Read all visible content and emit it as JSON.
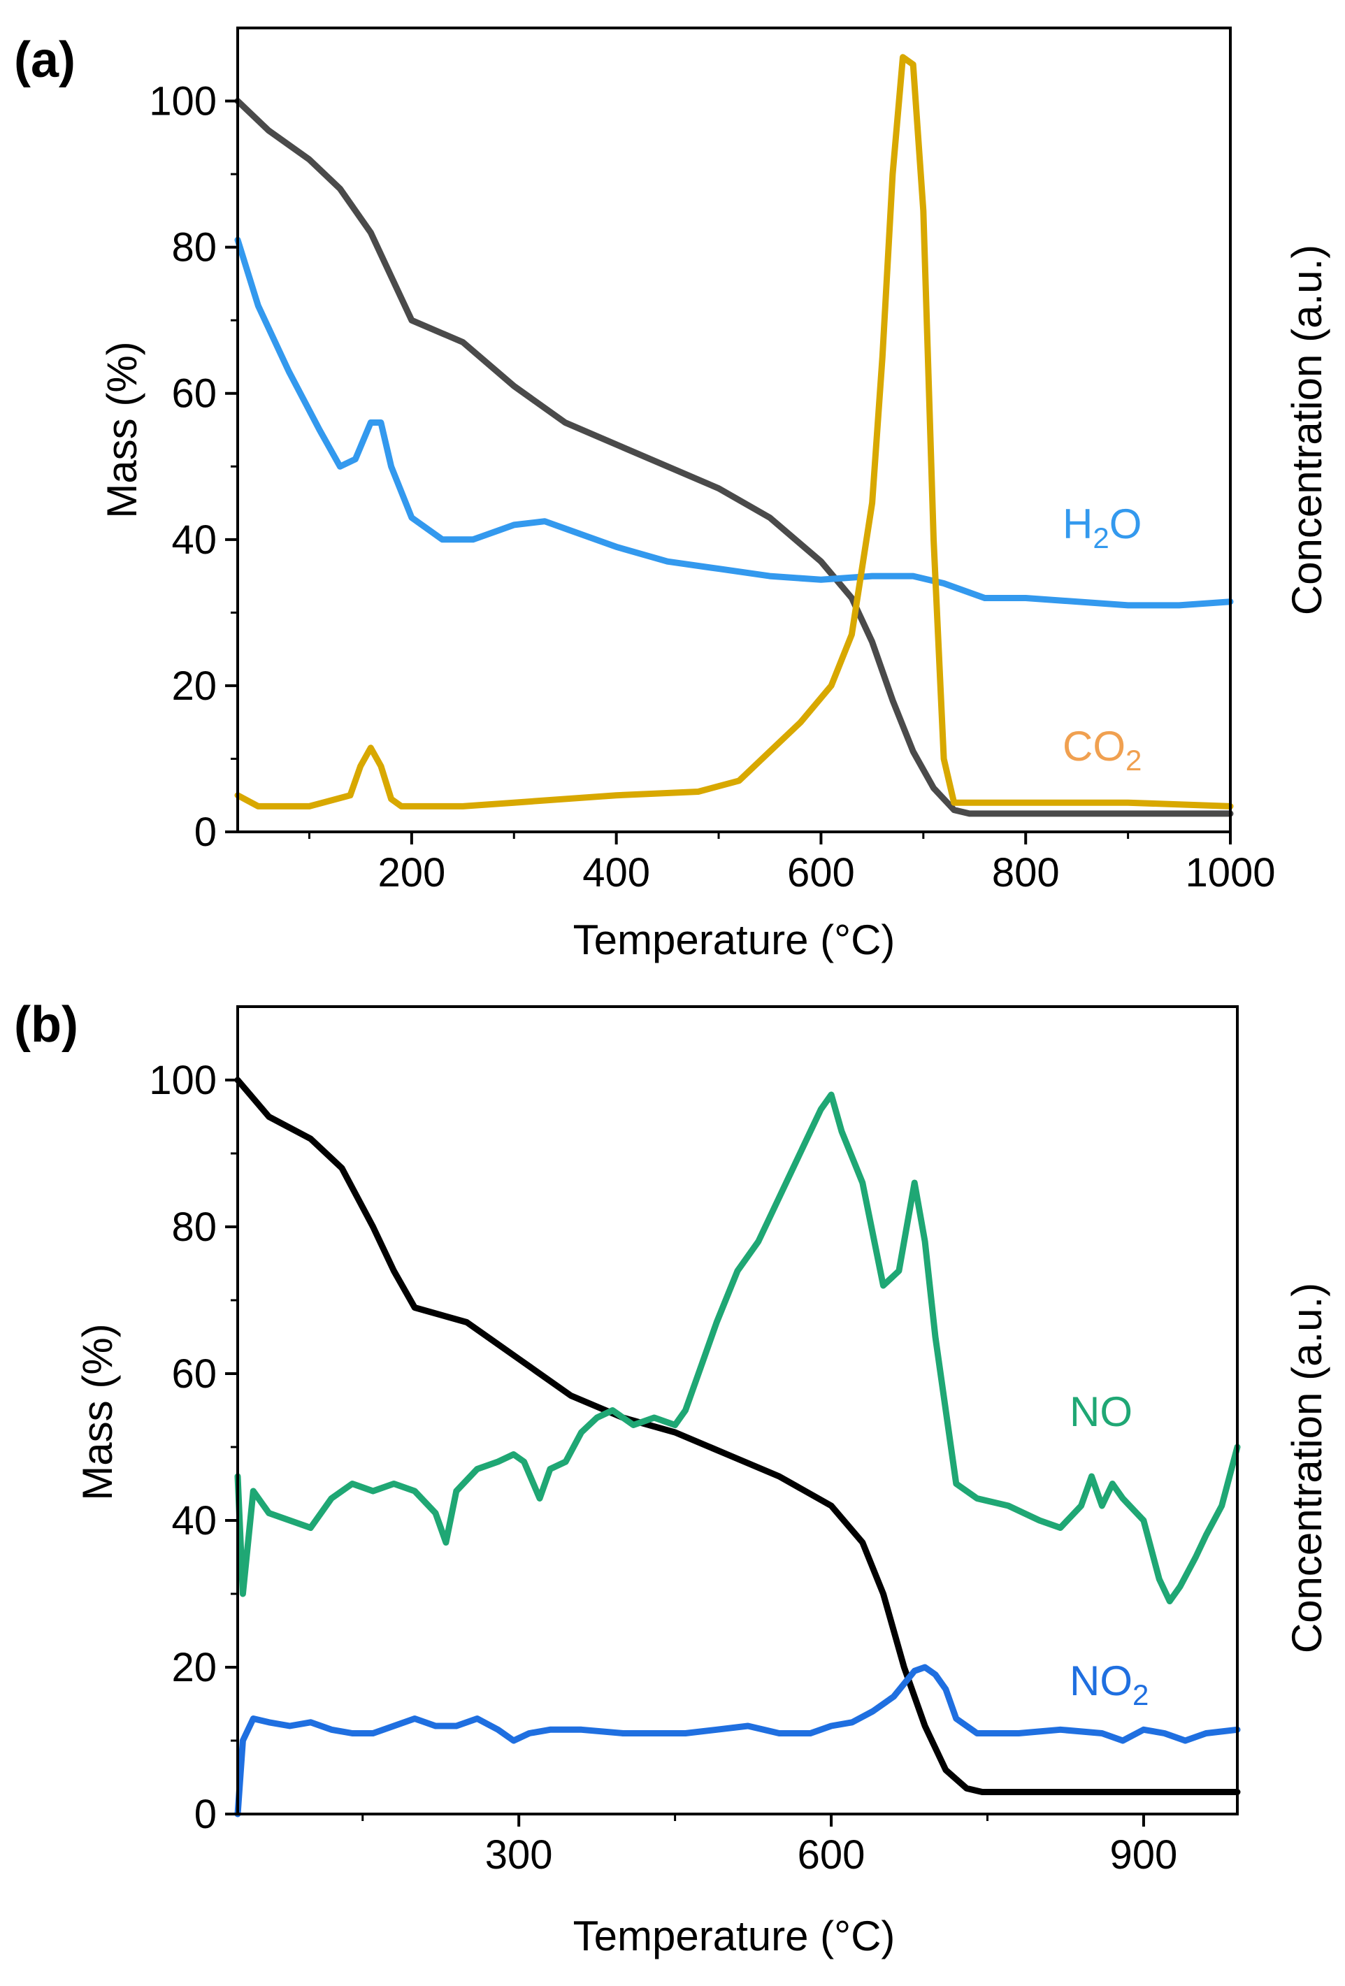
{
  "chart_data": [
    {
      "type": "line",
      "panel_label": "(a)",
      "xlabel": "Temperature (°C)",
      "ylabel": "Mass (%)",
      "y2label": "Concentration (a.u.)",
      "xlim": [
        30,
        1000
      ],
      "ylim": [
        0,
        110
      ],
      "xticks": [
        200,
        400,
        600,
        800,
        1000
      ],
      "yticks": [
        0,
        20,
        40,
        60,
        80,
        100
      ],
      "grid": false,
      "series": [
        {
          "key": "mass",
          "name": "",
          "axis": "left",
          "color": "#4a4a4a",
          "x": [
            30,
            60,
            100,
            130,
            160,
            180,
            200,
            250,
            300,
            350,
            400,
            450,
            500,
            550,
            600,
            630,
            650,
            670,
            690,
            710,
            730,
            745,
            760,
            800,
            900,
            1000
          ],
          "y": [
            100,
            96,
            92,
            88,
            82,
            76,
            70,
            67,
            61,
            56,
            53,
            50,
            47,
            43,
            37,
            32,
            26,
            18,
            11,
            6,
            3,
            2.5,
            2.5,
            2.5,
            2.5,
            2.5
          ]
        },
        {
          "key": "h2o",
          "name": "H2O",
          "axis": "right",
          "color": "#3399ee",
          "x": [
            30,
            50,
            80,
            110,
            130,
            145,
            160,
            170,
            180,
            200,
            230,
            260,
            300,
            330,
            360,
            400,
            450,
            500,
            550,
            600,
            650,
            690,
            720,
            760,
            800,
            900,
            950,
            1000
          ],
          "y": [
            81,
            72,
            63,
            55,
            50,
            51,
            56,
            56,
            50,
            43,
            40,
            40,
            42,
            42.5,
            41,
            39,
            37,
            36,
            35,
            34.5,
            35,
            35,
            34,
            32,
            32,
            31,
            31,
            31.5
          ]
        },
        {
          "key": "co2",
          "name": "CO2",
          "axis": "right",
          "color": "#d8a800",
          "x": [
            30,
            50,
            100,
            140,
            150,
            160,
            170,
            180,
            190,
            250,
            300,
            400,
            480,
            520,
            550,
            580,
            610,
            630,
            650,
            660,
            670,
            680,
            690,
            700,
            710,
            720,
            730,
            760,
            800,
            900,
            1000
          ],
          "y": [
            5,
            3.5,
            3.5,
            5,
            9,
            11.5,
            9,
            4.5,
            3.5,
            3.5,
            4,
            5,
            5.5,
            7,
            11,
            15,
            20,
            27,
            45,
            65,
            90,
            106,
            105,
            85,
            40,
            10,
            4,
            4,
            4,
            4,
            3.5
          ]
        }
      ],
      "series_labels": [
        {
          "text": "H2O",
          "base": "H",
          "sub": "2",
          "tail": "O",
          "color": "#3399ee"
        },
        {
          "text": "CO2",
          "base": "CO",
          "sub": "2",
          "tail": "",
          "color": "#f0a050"
        }
      ]
    },
    {
      "type": "line",
      "panel_label": "(b)",
      "xlabel": "Temperature (°C)",
      "ylabel": "Mass (%)",
      "y2label": "Concentration (a.u.)",
      "xlim": [
        30,
        990
      ],
      "ylim": [
        0,
        110
      ],
      "xticks": [
        300,
        600,
        900
      ],
      "yticks": [
        0,
        20,
        40,
        60,
        80,
        100
      ],
      "grid": false,
      "series": [
        {
          "key": "mass",
          "name": "",
          "axis": "left",
          "color": "#000000",
          "x": [
            30,
            60,
            100,
            130,
            160,
            180,
            200,
            250,
            300,
            350,
            400,
            450,
            500,
            550,
            600,
            630,
            650,
            670,
            690,
            710,
            730,
            745,
            760,
            800,
            900,
            990
          ],
          "y": [
            100,
            95,
            92,
            88,
            80,
            74,
            69,
            67,
            62,
            57,
            54,
            52,
            49,
            46,
            42,
            37,
            30,
            20,
            12,
            6,
            3.5,
            3,
            3,
            3,
            3,
            3
          ]
        },
        {
          "key": "no",
          "name": "NO",
          "axis": "right",
          "color": "#1fa774",
          "x": [
            30,
            35,
            45,
            60,
            80,
            100,
            120,
            140,
            160,
            180,
            200,
            220,
            230,
            240,
            260,
            280,
            295,
            305,
            320,
            330,
            345,
            360,
            375,
            390,
            410,
            430,
            450,
            460,
            475,
            490,
            510,
            530,
            550,
            570,
            590,
            600,
            610,
            630,
            650,
            665,
            680,
            690,
            700,
            710,
            720,
            740,
            770,
            800,
            820,
            840,
            850,
            860,
            870,
            880,
            900,
            915,
            925,
            935,
            950,
            960,
            975,
            990
          ],
          "y": [
            46,
            30,
            44,
            41,
            40,
            39,
            43,
            45,
            44,
            45,
            44,
            41,
            37,
            44,
            47,
            48,
            49,
            48,
            43,
            47,
            48,
            52,
            54,
            55,
            53,
            54,
            53,
            55,
            61,
            67,
            74,
            78,
            84,
            90,
            96,
            98,
            93,
            86,
            72,
            74,
            86,
            78,
            65,
            55,
            45,
            43,
            42,
            40,
            39,
            42,
            46,
            42,
            45,
            43,
            40,
            32,
            29,
            31,
            35,
            38,
            42,
            50
          ]
        },
        {
          "key": "no2",
          "name": "NO2",
          "axis": "right",
          "color": "#1f6fe0",
          "x": [
            30,
            35,
            45,
            60,
            80,
            100,
            120,
            140,
            160,
            180,
            200,
            220,
            240,
            260,
            280,
            295,
            310,
            330,
            360,
            400,
            430,
            460,
            490,
            520,
            550,
            580,
            600,
            620,
            640,
            660,
            680,
            690,
            700,
            710,
            720,
            740,
            780,
            820,
            860,
            880,
            900,
            920,
            940,
            960,
            990
          ],
          "y": [
            0,
            10,
            13,
            12.5,
            12,
            12.5,
            11.5,
            11,
            11,
            12,
            13,
            12,
            12,
            13,
            11.5,
            10,
            11,
            11.5,
            11.5,
            11,
            11,
            11,
            11.5,
            12,
            11,
            11,
            12,
            12.5,
            14,
            16,
            19.5,
            20,
            19,
            17,
            13,
            11,
            11,
            11.5,
            11,
            10,
            11.5,
            11,
            10,
            11,
            11.5
          ]
        }
      ],
      "series_labels": [
        {
          "text": "NO",
          "base": "NO",
          "sub": "",
          "tail": "",
          "color": "#1fa774"
        },
        {
          "text": "NO2",
          "base": "NO",
          "sub": "2",
          "tail": "",
          "color": "#1f6fe0"
        }
      ]
    }
  ]
}
